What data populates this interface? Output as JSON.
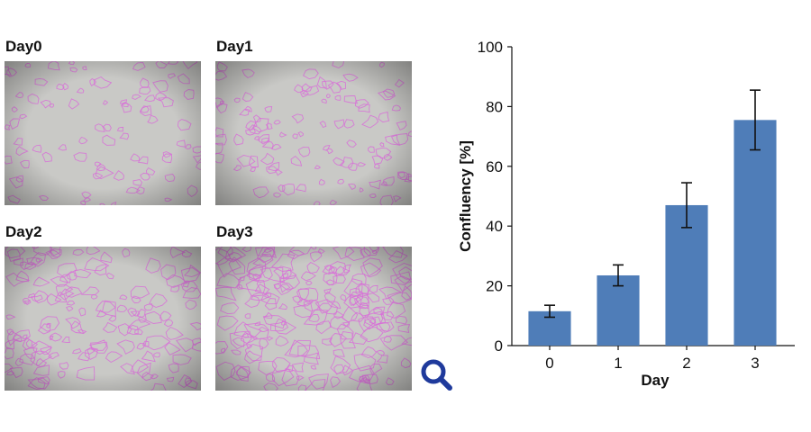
{
  "panels": [
    {
      "label": "Day0",
      "density": 0.12
    },
    {
      "label": "Day1",
      "density": 0.24
    },
    {
      "label": "Day2",
      "density": 0.47
    },
    {
      "label": "Day3",
      "density": 0.76
    }
  ],
  "colors": {
    "bar": "#4f7db8",
    "outline": "#d86fd8",
    "zoom_icon": "#1f3a9c",
    "micro_bg": "#c9c9c6"
  },
  "icons": {
    "zoom": "magnifier-icon"
  },
  "chart_data": {
    "type": "bar",
    "categories": [
      "0",
      "1",
      "2",
      "3"
    ],
    "values": [
      11.5,
      23.5,
      47,
      75.5
    ],
    "error": [
      2,
      3.5,
      7.5,
      10
    ],
    "xlabel": "Day",
    "ylabel": "Confluency [%]",
    "ylim": [
      0,
      100
    ],
    "yticks": [
      0,
      20,
      40,
      60,
      80,
      100
    ],
    "grid": false,
    "legend": "none"
  }
}
